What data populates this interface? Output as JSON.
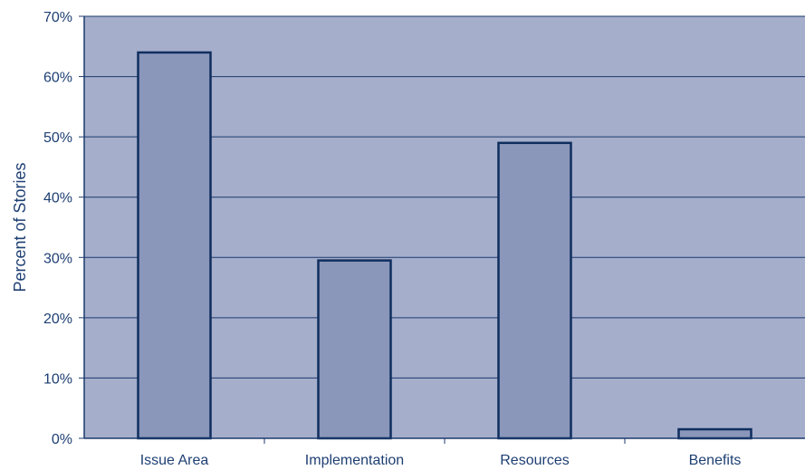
{
  "chart_data": {
    "type": "bar",
    "categories": [
      "Issue Area",
      "Implementation",
      "Resources",
      "Benefits"
    ],
    "values": [
      64,
      29.5,
      49,
      1.5
    ],
    "title": "",
    "xlabel": "",
    "ylabel": "Percent of Stories",
    "ylim": [
      0,
      70
    ],
    "yticks": [
      "0%",
      "10%",
      "20%",
      "30%",
      "40%",
      "50%",
      "60%",
      "70%"
    ],
    "grid": true,
    "legend": "none"
  },
  "colors": {
    "plot_background": "#a5aecb",
    "bar_fill": "#8a97ba",
    "bar_stroke": "#0f2e5e",
    "grid_line": "#1c3a6e",
    "text": "#1e3f73"
  }
}
